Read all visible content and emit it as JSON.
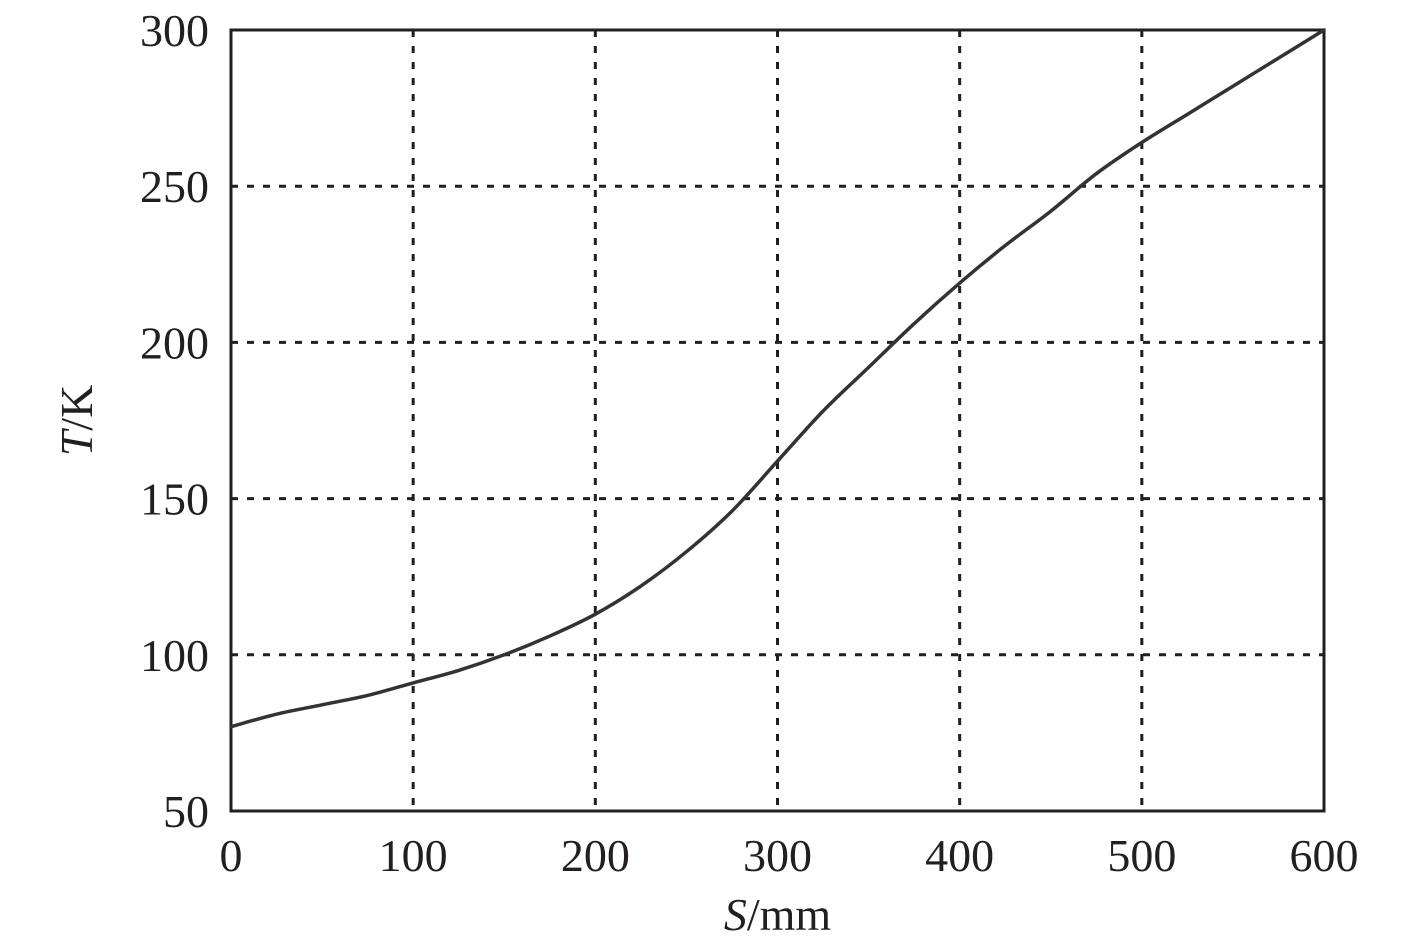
{
  "chart_data": {
    "type": "line",
    "x_axis": {
      "label_var": "S",
      "label_unit": "/mm",
      "ticks": [
        0,
        100,
        200,
        300,
        400,
        500,
        600
      ],
      "tick_labels": [
        "0",
        "100",
        "200",
        "300",
        "400",
        "500",
        "600"
      ],
      "range": [
        0,
        600
      ]
    },
    "y_axis": {
      "label_var": "T",
      "label_unit": "/K",
      "ticks": [
        50,
        100,
        150,
        200,
        250,
        300
      ],
      "tick_labels": [
        "50",
        "100",
        "150",
        "200",
        "250",
        "300"
      ],
      "range": [
        50,
        300
      ]
    },
    "grid": true,
    "grid_style": "dotted",
    "line_color": "#333333",
    "series": [
      {
        "x": [
          0,
          25,
          50,
          75,
          100,
          125,
          150,
          175,
          200,
          225,
          250,
          275,
          300,
          325,
          350,
          375,
          400,
          425,
          450,
          475,
          500,
          525,
          550,
          575,
          600
        ],
        "y": [
          77,
          81,
          84,
          87,
          91,
          95,
          100,
          106,
          113,
          122,
          133,
          146,
          162,
          178,
          192,
          206,
          219,
          231,
          242,
          254,
          264,
          273,
          282,
          291,
          300
        ]
      }
    ]
  }
}
